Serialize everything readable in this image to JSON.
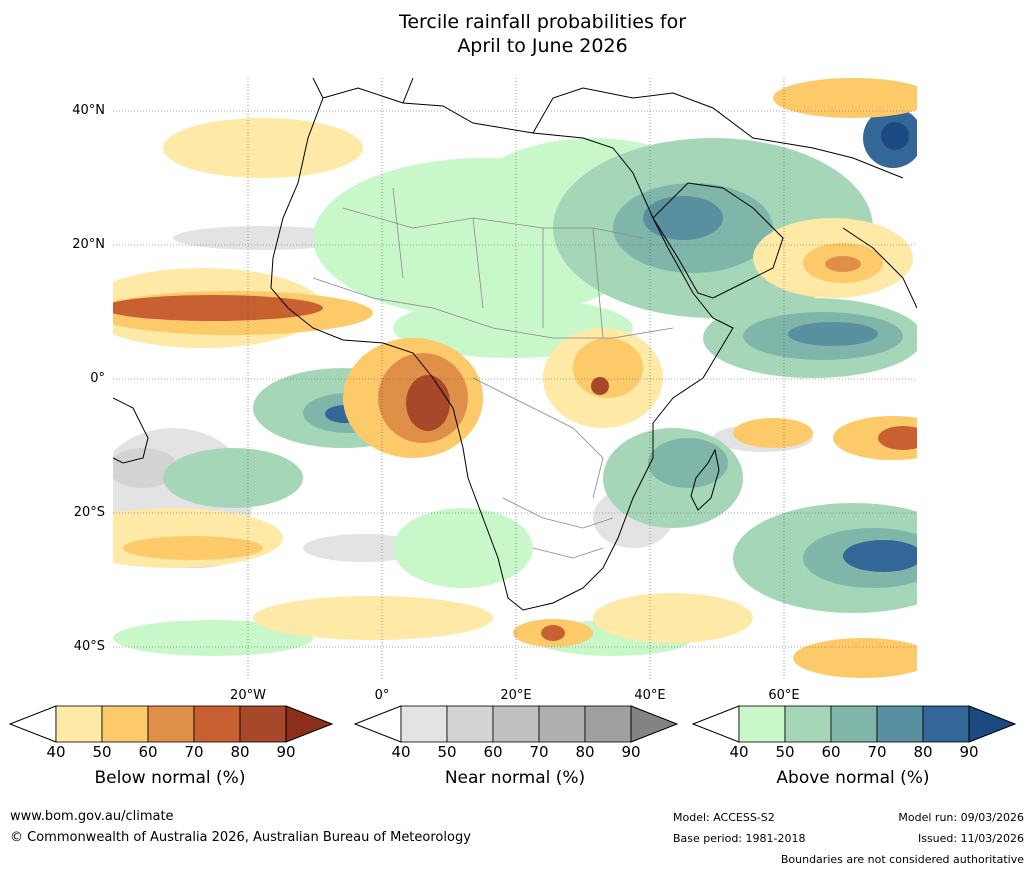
{
  "title": {
    "line1": "Tercile rainfall probabilities for",
    "line2": "April to June 2026"
  },
  "map": {
    "lat_labels": [
      "40°N",
      "20°N",
      "0°",
      "20°S",
      "40°S"
    ],
    "lon_labels": [
      "20°W",
      "0°",
      "20°E",
      "40°E",
      "60°E"
    ]
  },
  "colorbars": [
    {
      "name": "below",
      "label": "Below normal (%)",
      "ticks": [
        "40",
        "50",
        "60",
        "70",
        "80",
        "90"
      ],
      "colors": [
        "#ffe9a6",
        "#fdca6a",
        "#e08f48",
        "#c86032",
        "#a8482a",
        "#8c2e1c"
      ]
    },
    {
      "name": "near",
      "label": "Near normal (%)",
      "ticks": [
        "40",
        "50",
        "60",
        "70",
        "80",
        "90"
      ],
      "colors": [
        "#e3e3e3",
        "#d3d3d3",
        "#c0c0c0",
        "#afb0ae",
        "#a0a0a0",
        "#838383"
      ]
    },
    {
      "name": "above",
      "label": "Above normal (%)",
      "ticks": [
        "40",
        "50",
        "60",
        "70",
        "80",
        "90"
      ],
      "colors": [
        "#c8f8c9",
        "#a5d6b8",
        "#80b5aa",
        "#5890a0",
        "#336798",
        "#1c4a80"
      ]
    }
  ],
  "footer": {
    "website": "www.bom.gov.au/climate",
    "copyright": "© Commonwealth of Australia 2026, Australian Bureau of Meteorology",
    "model": "Model: ACCESS-S2",
    "base_period": "Base period: 1981-2018",
    "model_run": "Model run: 09/03/2026",
    "issued": "Issued: 11/03/2026",
    "disclaimer": "Boundaries are not considered authoritative"
  }
}
